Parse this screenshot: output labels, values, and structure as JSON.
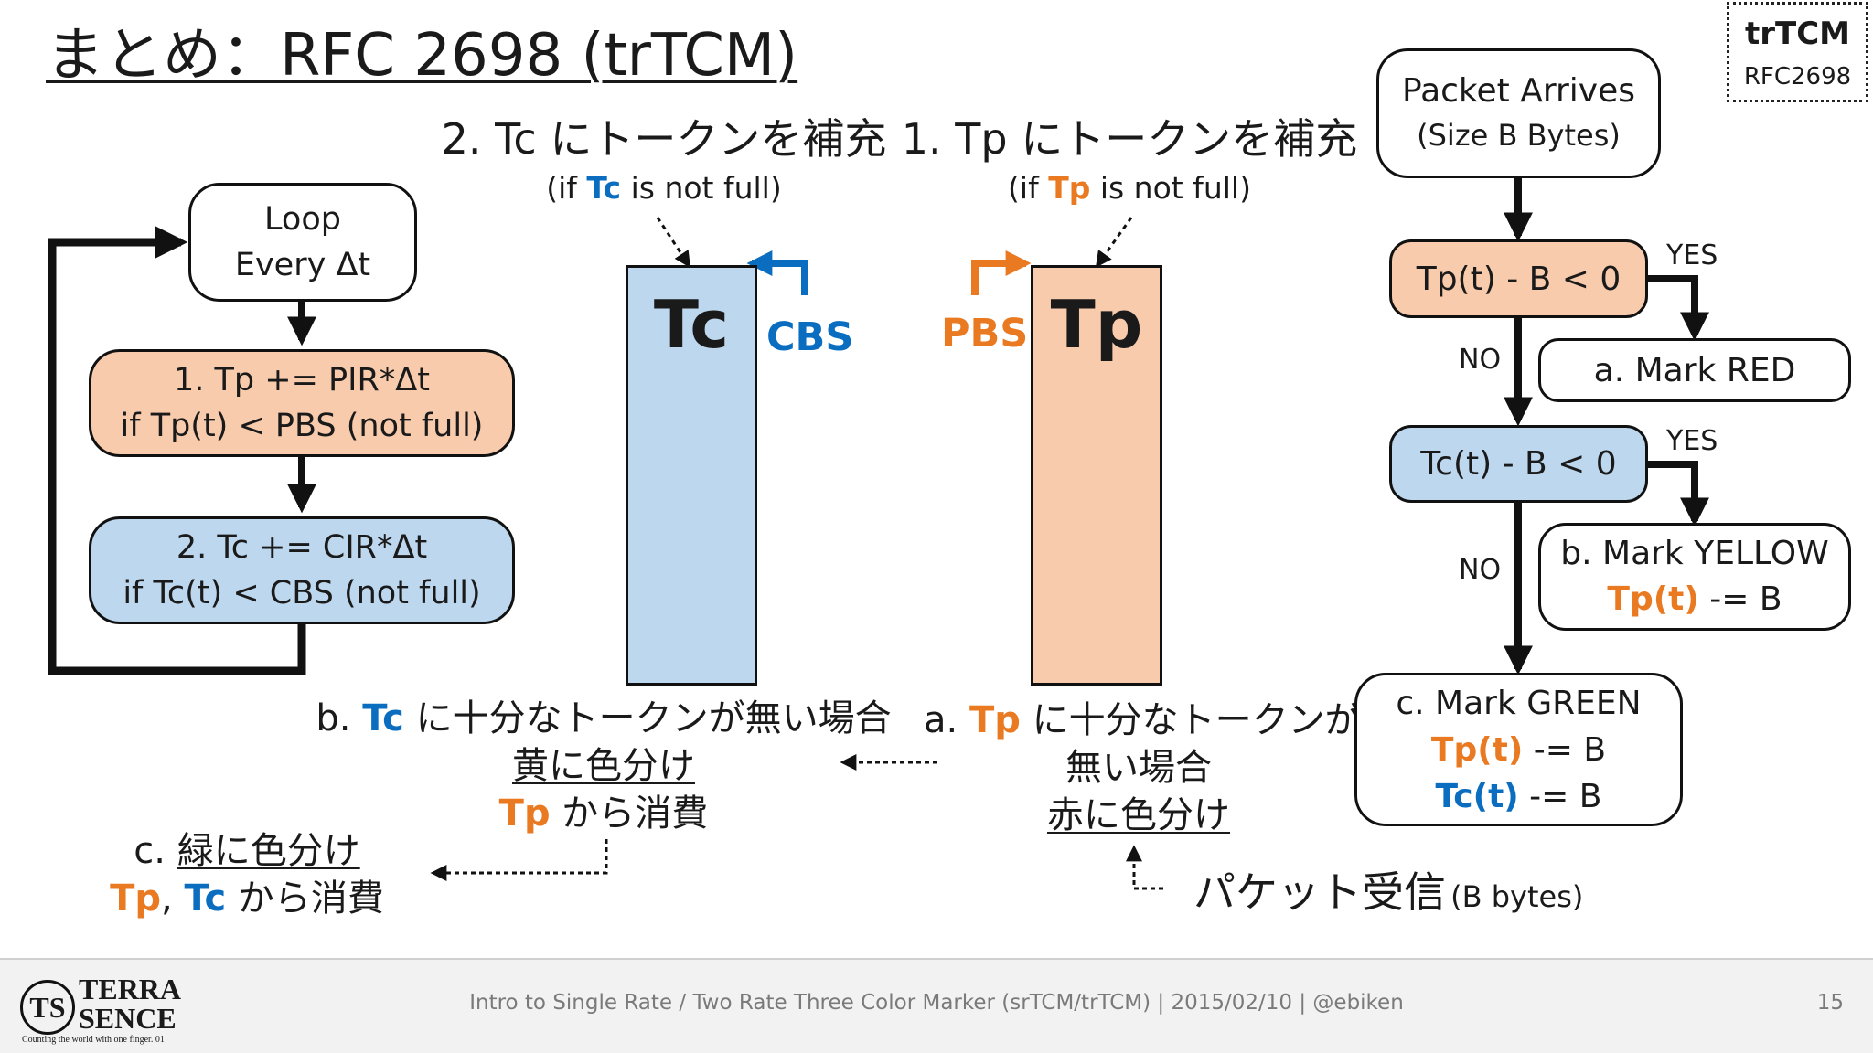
{
  "title": "まとめ：RFC 2698 (trTCM)",
  "badge": {
    "title": "trTCM",
    "subtitle": "RFC2698"
  },
  "loop": {
    "box": {
      "line1": "Loop",
      "line2": "Every Δt"
    },
    "step1": {
      "line1": "1. Tp += PIR*Δt",
      "line2": "if Tp(t) < PBS (not full)"
    },
    "step2": {
      "line1": "2. Tc += CIR*Δt",
      "line2": "if Tc(t) < CBS (not full)"
    }
  },
  "buckets": {
    "tc": {
      "heading": "2. Tc にトークンを補充",
      "cond_prefix": "(if ",
      "cond_name": "Tc",
      "cond_suffix": " is not full)",
      "label": "Tc",
      "size_label": "CBS"
    },
    "tp": {
      "heading": "1. Tp にトークンを補充",
      "cond_prefix": "(if ",
      "cond_name": "Tp",
      "cond_suffix": " is not full)",
      "label": "Tp",
      "size_label": "PBS"
    }
  },
  "notes": {
    "b": {
      "prefix": "b. ",
      "name": "Tc",
      "line1_rest": " に十分なトークンが無い場合",
      "line2": "黄に色分け",
      "line3_name": "Tp",
      "line3_rest": " から消費"
    },
    "a": {
      "prefix": "a. ",
      "name": "Tp",
      "line1_rest": " に十分なトークンが",
      "line2": "無い場合",
      "line3": "赤に色分け"
    },
    "c": {
      "prefix": "c. ",
      "line1": "緑に色分け",
      "name1": "Tp",
      "sep": ", ",
      "name2": "Tc",
      "line2_rest": " から消費"
    },
    "packet": {
      "main": "パケット受信",
      "sub": "(B bytes)"
    }
  },
  "flow": {
    "start": {
      "line1": "Packet Arrives",
      "line2": "(Size B Bytes)"
    },
    "cond1": "Tp(t) - B < 0",
    "yes1": "YES",
    "red": "a. Mark RED",
    "no1": "NO",
    "cond2": "Tc(t) - B < 0",
    "yes2": "YES",
    "yellow": {
      "line1": "b. Mark YELLOW",
      "line2_name": "Tp(t)",
      "line2_rest": " -= B"
    },
    "no2": "NO",
    "green": {
      "line1": "c. Mark GREEN",
      "line2_name": "Tp(t)",
      "line2_rest": " -= B",
      "line3_name": "Tc(t)",
      "line3_rest": " -= B"
    }
  },
  "footer": {
    "logo_mark": "TS",
    "logo_line1": "TERRA",
    "logo_line2": "SENCE",
    "logo_tagline": "Counting the world with one finger. 01",
    "text": "Intro to Single Rate / Two Rate Three Color Marker (srTCM/trTCM) | 2015/02/10 | @ebiken",
    "page": "15"
  },
  "colors": {
    "orange": "#e97a22",
    "blue": "#0a6dbf",
    "orange_fill": "#f8cbad",
    "blue_fill": "#bdd7ee"
  }
}
